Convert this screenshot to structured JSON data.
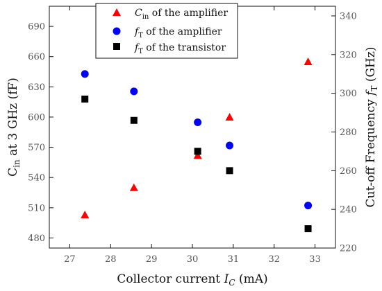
{
  "chart_data": {
    "type": "scatter",
    "xlabel": "Collector current I_C (mA)",
    "ylabel_left": "C_in at 3 GHz (fF)",
    "ylabel_right": "Cut-off Frequency f_T (GHz)",
    "xlim": [
      26.5,
      33.5
    ],
    "ylim_left": [
      470,
      710
    ],
    "ylim_right": [
      220,
      345
    ],
    "x_ticks": [
      "27",
      "28",
      "29",
      "30",
      "31",
      "32",
      "33"
    ],
    "y_left_ticks": [
      "480",
      "510",
      "540",
      "570",
      "600",
      "630",
      "660",
      "690"
    ],
    "y_right_ticks": [
      "220",
      "240",
      "260",
      "280",
      "300",
      "320",
      "340"
    ],
    "legend_position": "top-center",
    "series": [
      {
        "name": "C_in of the amplifier",
        "axis": "left",
        "marker": "triangle",
        "color": "#ff0000",
        "points": [
          [
            27.37,
            503
          ],
          [
            28.57,
            530
          ],
          [
            30.13,
            562
          ],
          [
            30.91,
            600
          ],
          [
            32.83,
            655
          ]
        ]
      },
      {
        "name": "f_T of the amplifier",
        "axis": "right",
        "marker": "circle",
        "color": "#0000ff",
        "points": [
          [
            27.37,
            310
          ],
          [
            28.57,
            301
          ],
          [
            30.13,
            285
          ],
          [
            30.91,
            273
          ],
          [
            32.83,
            242
          ]
        ]
      },
      {
        "name": "f_T of the transistor",
        "axis": "right",
        "marker": "square",
        "color": "#000000",
        "points": [
          [
            27.37,
            297
          ],
          [
            28.57,
            286
          ],
          [
            30.13,
            270
          ],
          [
            30.91,
            260
          ],
          [
            32.83,
            230
          ]
        ]
      }
    ]
  },
  "text": {
    "ylabel_left_main": "C",
    "ylabel_left_sub": "in",
    "ylabel_left_rest": " at 3 GHz (fF)",
    "ylabel_right_main": "Cut-off Frequency ",
    "ylabel_right_italic": "f",
    "ylabel_right_sub": "T",
    "ylabel_right_rest": " (GHz)",
    "xlabel_main": "Collector current ",
    "xlabel_italic": "I",
    "xlabel_sub": "C",
    "xlabel_rest": " (mA)",
    "legend": [
      {
        "italic": "C",
        "sub": "in",
        "rest": " of the amplifier"
      },
      {
        "italic": "f",
        "sub": "T",
        "rest": " of the amplifier"
      },
      {
        "italic": "f",
        "sub": "T",
        "rest": " of the transistor"
      }
    ]
  }
}
